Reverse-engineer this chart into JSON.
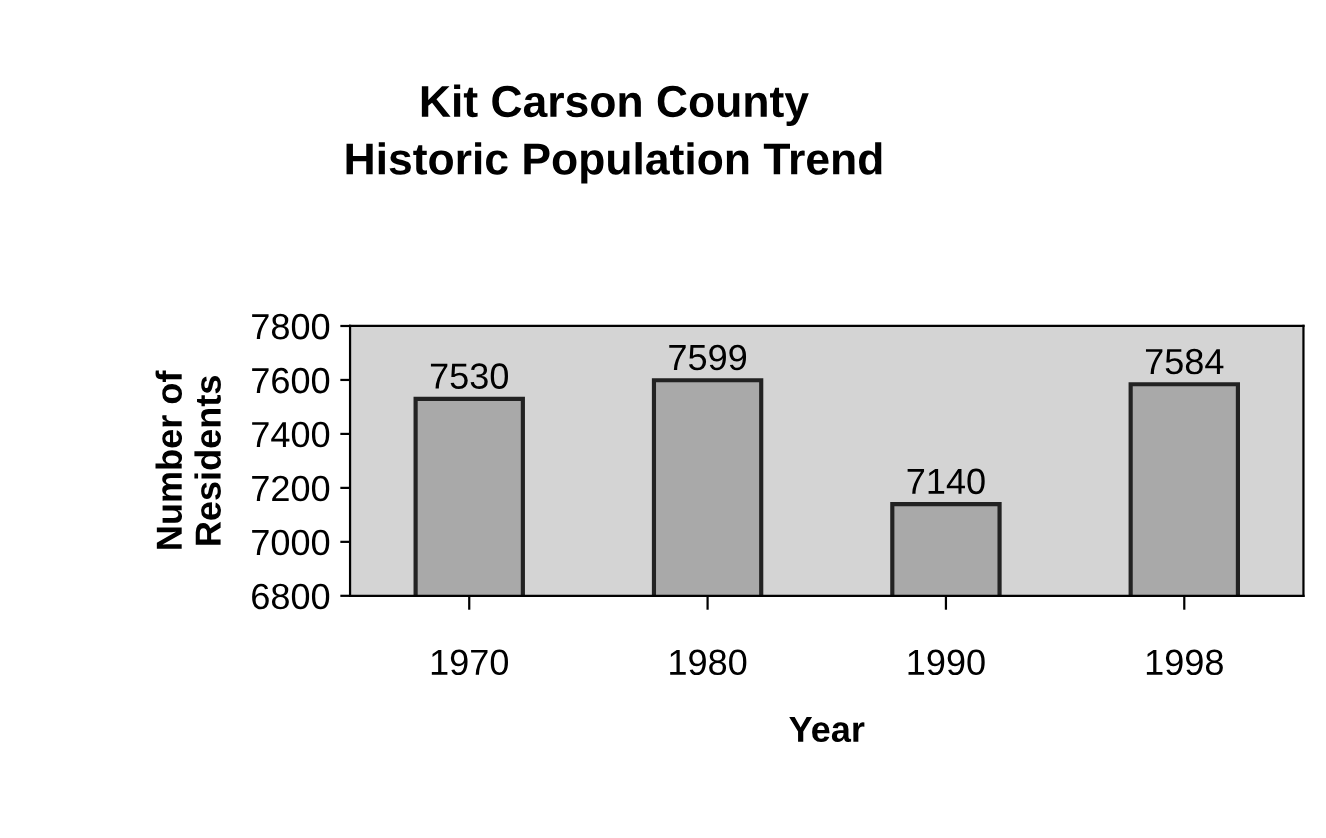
{
  "chart_data": {
    "type": "bar",
    "title": "Kit Carson County\nHistoric Population Trend",
    "xlabel": "Year",
    "ylabel": "Number of\nResidents",
    "categories": [
      "1970",
      "1980",
      "1990",
      "1998"
    ],
    "values": [
      7530,
      7599,
      7140,
      7584
    ],
    "color": "#a9a9a9",
    "ylim": [
      6800,
      7800
    ],
    "yticks": [
      6800,
      7000,
      7200,
      7400,
      7600,
      7800
    ],
    "grid": false,
    "data_labels": true
  }
}
